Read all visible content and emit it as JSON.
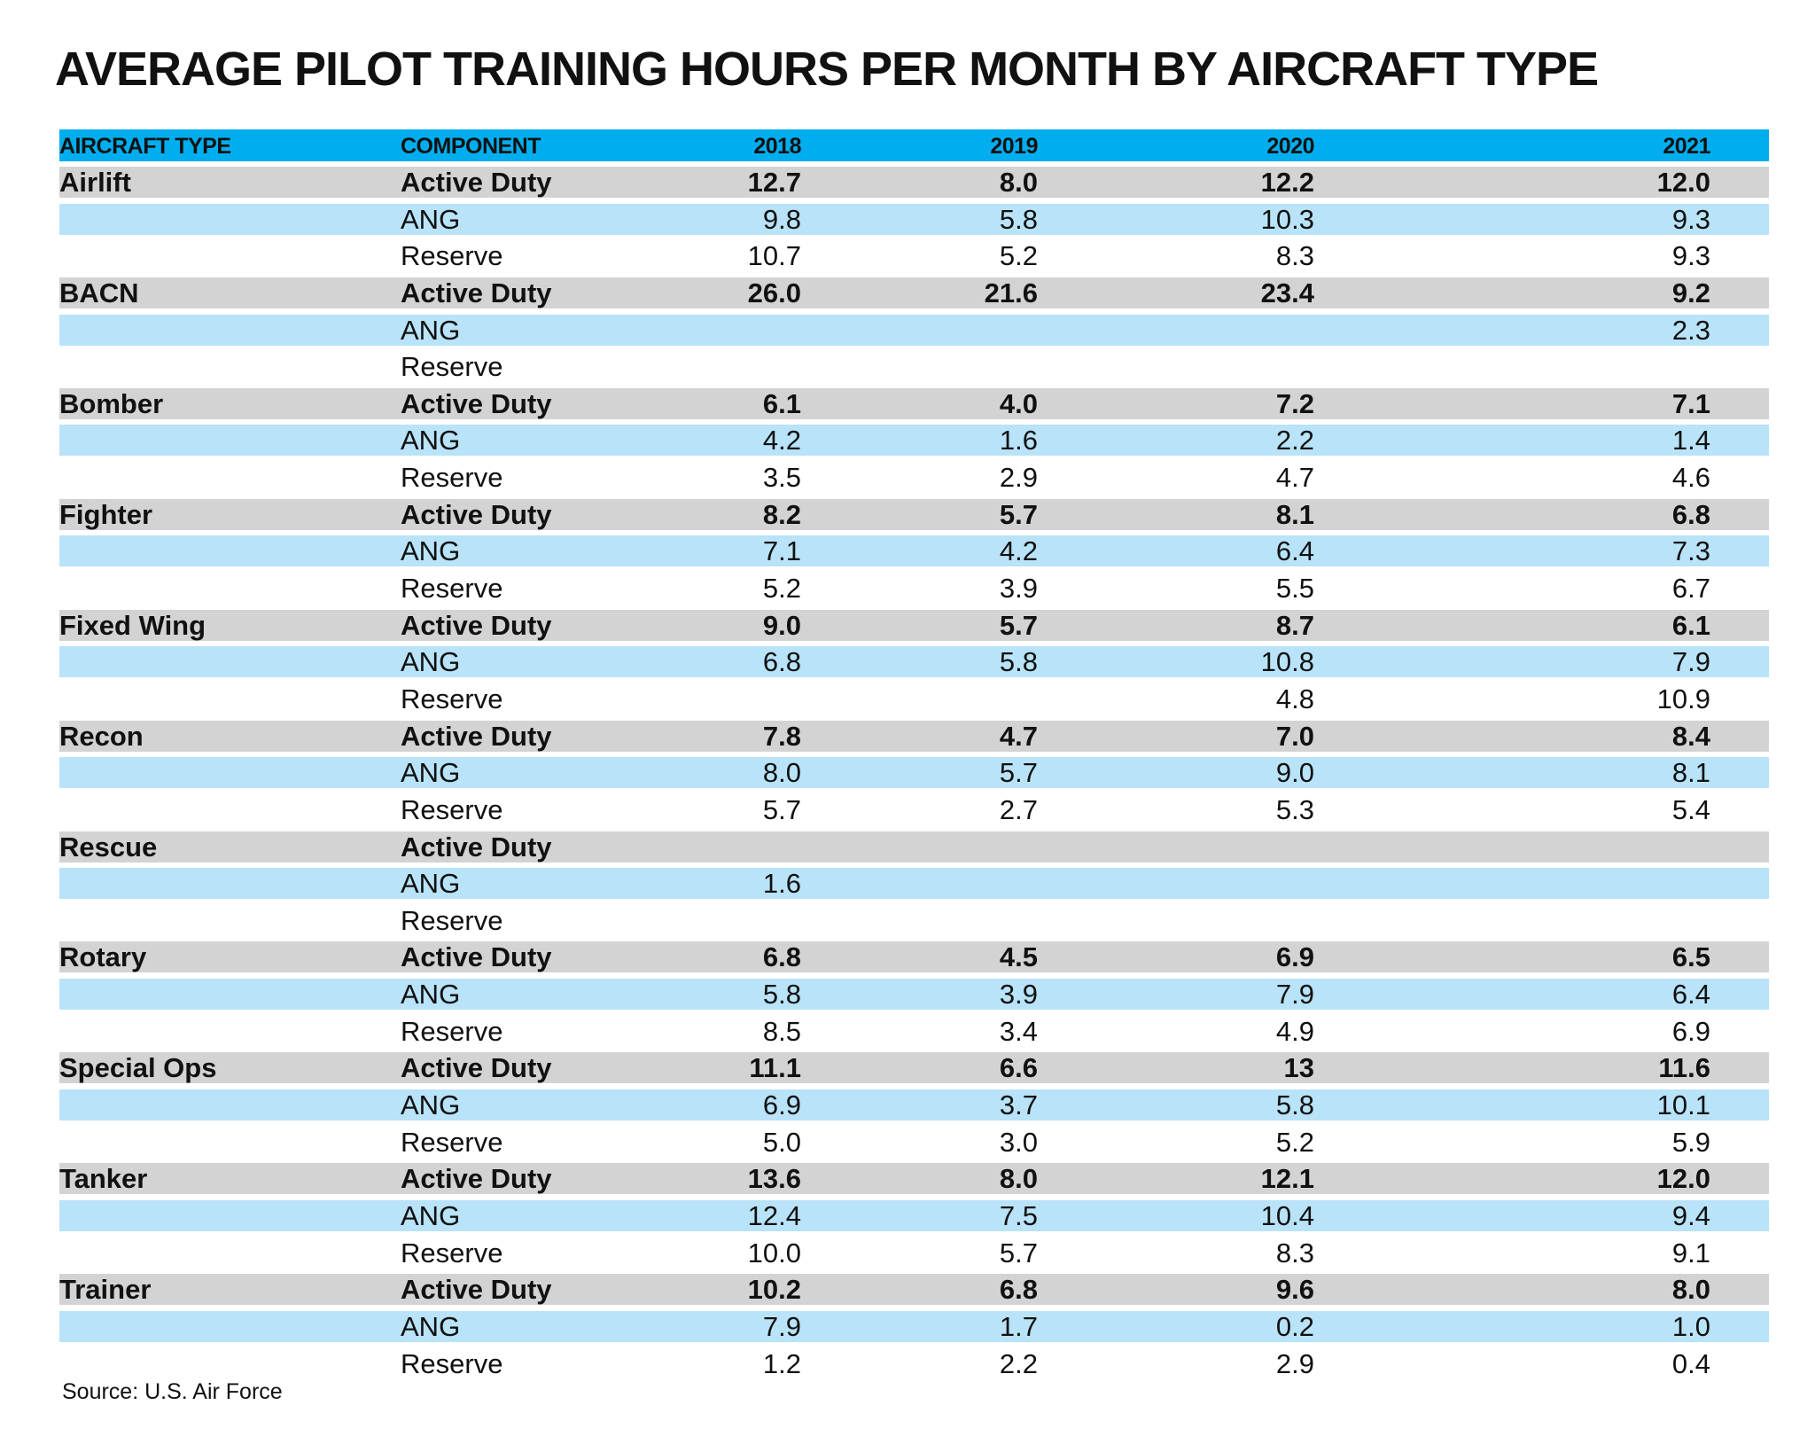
{
  "chart_data": {
    "type": "table",
    "title": "AVERAGE PILOT TRAINING HOURS PER MONTH BY AIRCRAFT TYPE",
    "header_color": "#00aeef",
    "stripe_colors": [
      "#d3d3d3",
      "#b8e3f8",
      "#ffffff"
    ],
    "columns": [
      "AIRCRAFT TYPE",
      "COMPONENT",
      "2018",
      "2019",
      "2020",
      "2021"
    ],
    "rows": [
      [
        "Airlift",
        "Active Duty",
        "12.7",
        "8.0",
        "12.2",
        "12.0"
      ],
      [
        "",
        "ANG",
        "9.8",
        "5.8",
        "10.3",
        "9.3"
      ],
      [
        "",
        "Reserve",
        "10.7",
        "5.2",
        "8.3",
        "9.3"
      ],
      [
        "BACN",
        "Active Duty",
        "26.0",
        "21.6",
        "23.4",
        "9.2"
      ],
      [
        "",
        "ANG",
        "",
        "",
        "",
        "2.3"
      ],
      [
        "",
        "Reserve",
        "",
        "",
        "",
        ""
      ],
      [
        "Bomber",
        "Active Duty",
        "6.1",
        "4.0",
        "7.2",
        "7.1"
      ],
      [
        "",
        "ANG",
        "4.2",
        "1.6",
        "2.2",
        "1.4"
      ],
      [
        "",
        "Reserve",
        "3.5",
        "2.9",
        "4.7",
        "4.6"
      ],
      [
        "Fighter",
        "Active Duty",
        "8.2",
        "5.7",
        "8.1",
        "6.8"
      ],
      [
        "",
        "ANG",
        "7.1",
        "4.2",
        "6.4",
        "7.3"
      ],
      [
        "",
        "Reserve",
        "5.2",
        "3.9",
        "5.5",
        "6.7"
      ],
      [
        "Fixed Wing",
        "Active Duty",
        "9.0",
        "5.7",
        "8.7",
        "6.1"
      ],
      [
        "",
        "ANG",
        "6.8",
        "5.8",
        "10.8",
        "7.9"
      ],
      [
        "",
        "Reserve",
        "",
        "",
        "4.8",
        "10.9"
      ],
      [
        "Recon",
        "Active Duty",
        "7.8",
        "4.7",
        "7.0",
        "8.4"
      ],
      [
        "",
        "ANG",
        "8.0",
        "5.7",
        "9.0",
        "8.1"
      ],
      [
        "",
        "Reserve",
        "5.7",
        "2.7",
        "5.3",
        "5.4"
      ],
      [
        "Rescue",
        "Active Duty",
        "",
        "",
        "",
        ""
      ],
      [
        "",
        "ANG",
        "1.6",
        "",
        "",
        ""
      ],
      [
        "",
        "Reserve",
        "",
        "",
        "",
        ""
      ],
      [
        "Rotary",
        "Active Duty",
        "6.8",
        "4.5",
        "6.9",
        "6.5"
      ],
      [
        "",
        "ANG",
        "5.8",
        "3.9",
        "7.9",
        "6.4"
      ],
      [
        "",
        "Reserve",
        "8.5",
        "3.4",
        "4.9",
        "6.9"
      ],
      [
        "Special Ops",
        "Active Duty",
        "11.1",
        "6.6",
        "13",
        "11.6"
      ],
      [
        "",
        "ANG",
        "6.9",
        "3.7",
        "5.8",
        "10.1"
      ],
      [
        "",
        "Reserve",
        "5.0",
        "3.0",
        "5.2",
        "5.9"
      ],
      [
        "Tanker",
        "Active Duty",
        "13.6",
        "8.0",
        "12.1",
        "12.0"
      ],
      [
        "",
        "ANG",
        "12.4",
        "7.5",
        "10.4",
        "9.4"
      ],
      [
        "",
        "Reserve",
        "10.0",
        "5.7",
        "8.3",
        "9.1"
      ],
      [
        "Trainer",
        "Active Duty",
        "10.2",
        "6.8",
        "9.6",
        "8.0"
      ],
      [
        "",
        "ANG",
        "7.9",
        "1.7",
        "0.2",
        "1.0"
      ],
      [
        "",
        "Reserve",
        "1.2",
        "2.2",
        "2.9",
        "0.4"
      ]
    ],
    "source": "Source: U.S. Air Force"
  }
}
